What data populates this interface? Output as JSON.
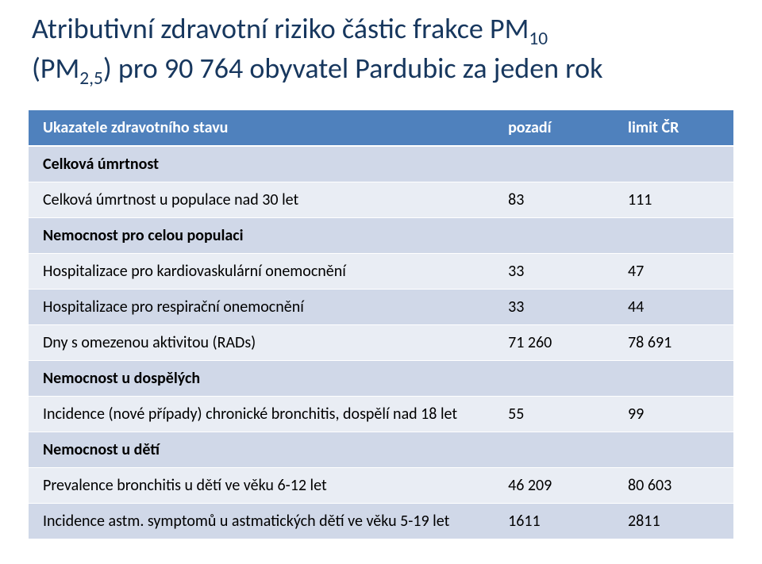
{
  "title": {
    "line1_pre": "Atributivní zdravotní riziko částic frakce PM",
    "line1_sub": "10",
    "line2_pre": "(PM",
    "line2_sub": "2,5",
    "line2_post": ") pro 90 764 obyvatel Pardubic za jeden rok",
    "color": "#17375e",
    "fontsize": 36
  },
  "table": {
    "header_bg": "#4f81bd",
    "header_fg": "#ffffff",
    "band_a_bg": "#e9edf4",
    "band_b_bg": "#d0d8e8",
    "columns": [
      "Ukazatele zdravotního stavu",
      "pozadí",
      "limit ČR"
    ],
    "col_widths_pct": [
      66,
      17,
      17
    ],
    "rows": [
      {
        "type": "section",
        "label": "Celková úmrtnost"
      },
      {
        "type": "data",
        "band": "a",
        "label": "Celková úmrtnost u populace nad 30 let",
        "v1": "83",
        "v2": "111"
      },
      {
        "type": "section",
        "label": "Nemocnost pro celou populaci"
      },
      {
        "type": "data",
        "band": "a",
        "label": "Hospitalizace pro kardiovaskulární onemocnění",
        "v1": "33",
        "v2": "47"
      },
      {
        "type": "data",
        "band": "b",
        "label": "Hospitalizace pro respirační onemocnění",
        "v1": "33",
        "v2": "44"
      },
      {
        "type": "data",
        "band": "a",
        "label": "Dny s omezenou aktivitou (RADs)",
        "v1": "71 260",
        "v2": "78 691"
      },
      {
        "type": "section",
        "label": "Nemocnost u dospělých"
      },
      {
        "type": "data",
        "band": "a",
        "label": "Incidence (nové případy) chronické bronchitis, dospělí nad 18 let",
        "v1": "55",
        "v2": "99"
      },
      {
        "type": "section",
        "label": "Nemocnost u dětí"
      },
      {
        "type": "data",
        "band": "a",
        "label": "Prevalence bronchitis u dětí ve věku 6-12 let",
        "v1": "46 209",
        "v2": "80 603"
      },
      {
        "type": "data",
        "band": "b",
        "label": "Incidence astm. symptomů u astmatických dětí ve věku 5-19 let",
        "v1": "1611",
        "v2": "2811"
      }
    ]
  }
}
